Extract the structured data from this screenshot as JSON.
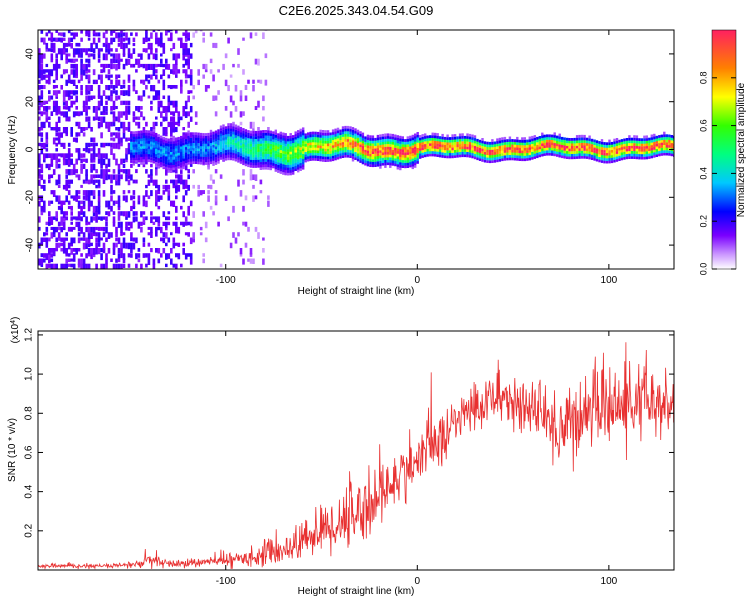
{
  "title": "C2E6.2025.343.04.54.G09",
  "chart_data": [
    {
      "type": "heatmap",
      "name": "spectrogram",
      "xlabel": "Height of straight line (km)",
      "ylabel": "Frequency (Hz)",
      "xlim": [
        -198,
        134
      ],
      "ylim": [
        -50,
        50
      ],
      "xticks": [
        -100,
        0,
        100
      ],
      "yticks": [
        -40,
        -20,
        0,
        20,
        40
      ],
      "ridge_frequency_hz": 0,
      "description_colorscale": "purple (low) to red (high)",
      "colorbar": {
        "label": "Normalized spectral amplitude",
        "range": [
          0,
          1
        ],
        "ticks": [
          0.0,
          0.2,
          0.4,
          0.6,
          0.8
        ],
        "tick_labels": [
          "0.0",
          "0.2",
          "0.4",
          "0.6",
          "0.8"
        ]
      }
    },
    {
      "type": "line",
      "name": "snr",
      "xlabel": "Height of straight line (km)",
      "ylabel": "SNR (10 * v/v)",
      "multiplier_label": "(x10",
      "multiplier_exp": "4",
      "multiplier_close": ")",
      "xlim": [
        -198,
        134
      ],
      "ylim": [
        0,
        1.22
      ],
      "xticks": [
        -100,
        0,
        100
      ],
      "yticks": [
        0.2,
        0.4,
        0.6,
        0.8,
        1.0,
        1.2
      ],
      "ytick_labels": [
        "0.2",
        "0.4",
        "0.6",
        "0.8",
        "1.0",
        "1.2"
      ],
      "color": "#e83030",
      "envelope": {
        "x": [
          -198,
          -160,
          -145,
          -140,
          -130,
          -110,
          -90,
          -75,
          -65,
          -55,
          -45,
          -35,
          -25,
          -15,
          -5,
          5,
          15,
          25,
          35,
          45,
          55,
          65,
          75,
          85,
          95,
          105,
          115,
          125,
          134
        ],
        "mean": [
          0.02,
          0.02,
          0.03,
          0.05,
          0.03,
          0.04,
          0.06,
          0.09,
          0.12,
          0.18,
          0.22,
          0.28,
          0.33,
          0.42,
          0.52,
          0.6,
          0.7,
          0.8,
          0.86,
          0.88,
          0.84,
          0.78,
          0.72,
          0.78,
          0.85,
          0.82,
          0.86,
          0.84,
          0.83
        ],
        "spread": [
          0.01,
          0.01,
          0.02,
          0.04,
          0.02,
          0.02,
          0.04,
          0.06,
          0.08,
          0.1,
          0.14,
          0.16,
          0.16,
          0.14,
          0.13,
          0.12,
          0.12,
          0.12,
          0.12,
          0.13,
          0.13,
          0.12,
          0.22,
          0.16,
          0.18,
          0.18,
          0.18,
          0.18,
          0.14
        ]
      }
    }
  ]
}
